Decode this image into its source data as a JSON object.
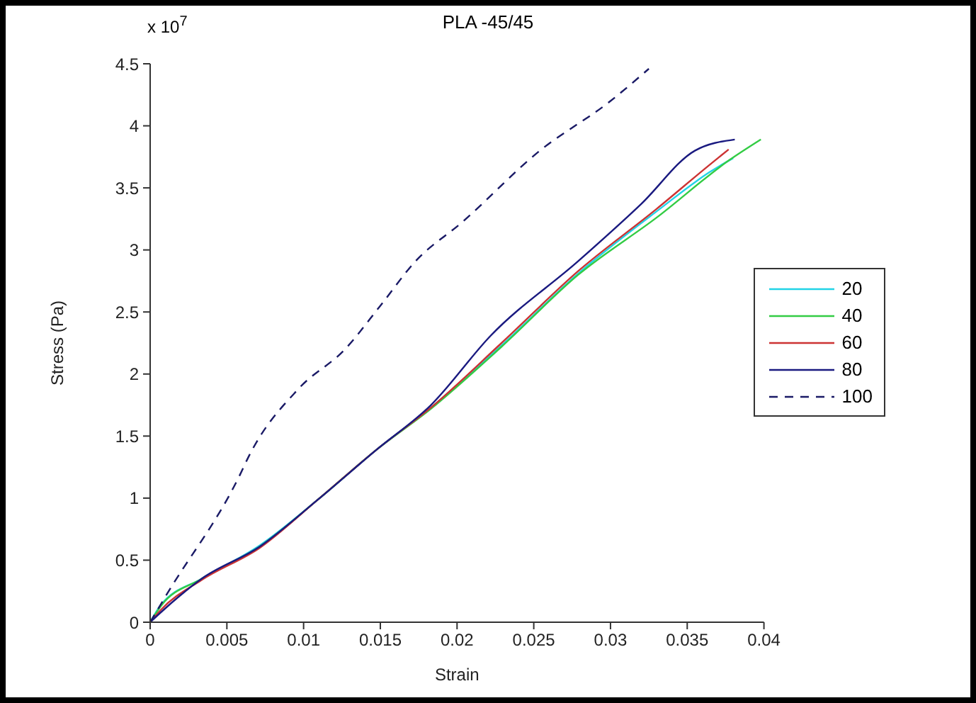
{
  "chart_data": {
    "type": "line",
    "title": "PLA -45/45",
    "xlabel": "Strain",
    "ylabel": "Stress (Pa)",
    "annotations": [
      "x 10$^{7}$"
    ],
    "xlim": [
      0,
      0.04
    ],
    "xticks": [
      0,
      0.005,
      0.01,
      0.015,
      0.02,
      0.025,
      0.03,
      0.035,
      0.04
    ],
    "ylim": [
      0,
      4.5
    ],
    "yticks": [
      0,
      0.5,
      1,
      1.5,
      2,
      2.5,
      3,
      3.5,
      4,
      4.5
    ],
    "legend": "right",
    "grid": false,
    "marker": "none",
    "series": [
      {
        "name": "20",
        "color": "#22d3e6",
        "line_style": "solid",
        "x": [
          0,
          0.0007,
          0.00335,
          0.00715,
          0.01095,
          0.01475,
          0.0183,
          0.0229,
          0.0279,
          0.033,
          0.0365,
          0.038
        ],
        "values": [
          0,
          0.14,
          0.35,
          0.62,
          0.99,
          1.39,
          1.73,
          2.23,
          2.81,
          3.31,
          3.63,
          3.74
        ]
      },
      {
        "name": "40",
        "color": "#33cc44",
        "line_style": "solid",
        "x": [
          0,
          0.0007,
          0.00335,
          0.00715,
          0.01095,
          0.01475,
          0.0183,
          0.0229,
          0.0279,
          0.033,
          0.0377,
          0.0398
        ],
        "values": [
          0,
          0.13,
          0.35,
          0.61,
          0.99,
          1.39,
          1.72,
          2.22,
          2.8,
          3.26,
          3.72,
          3.89
        ]
      },
      {
        "name": "60",
        "color": "#cc3333",
        "line_style": "solid",
        "x": [
          0,
          0.0007,
          0.00335,
          0.00715,
          0.01095,
          0.01475,
          0.0183,
          0.0229,
          0.0279,
          0.033,
          0.0365,
          0.0377
        ],
        "values": [
          0,
          0.1,
          0.34,
          0.6,
          0.99,
          1.39,
          1.73,
          2.25,
          2.83,
          3.33,
          3.69,
          3.81
        ]
      },
      {
        "name": "80",
        "color": "#1a1a80",
        "line_style": "solid",
        "x": [
          0,
          0.0007,
          0.00335,
          0.00715,
          0.01095,
          0.01475,
          0.0183,
          0.0222,
          0.0279,
          0.032,
          0.0355,
          0.0381
        ],
        "values": [
          0,
          0.08,
          0.35,
          0.61,
          0.99,
          1.39,
          1.75,
          2.31,
          2.91,
          3.37,
          3.8,
          3.89
        ]
      },
      {
        "name": "100",
        "color": "#1a1a66",
        "line_style": "dashed",
        "x": [
          0,
          0.00106,
          0.00586,
          0.0064,
          0.00966,
          0.0127,
          0.015,
          0.0173,
          0.0203,
          0.0254,
          0.03,
          0.0325
        ],
        "values": [
          0,
          0.22,
          1.19,
          1.33,
          1.88,
          2.2,
          2.55,
          2.91,
          3.22,
          3.8,
          4.2,
          4.46
        ]
      }
    ]
  }
}
